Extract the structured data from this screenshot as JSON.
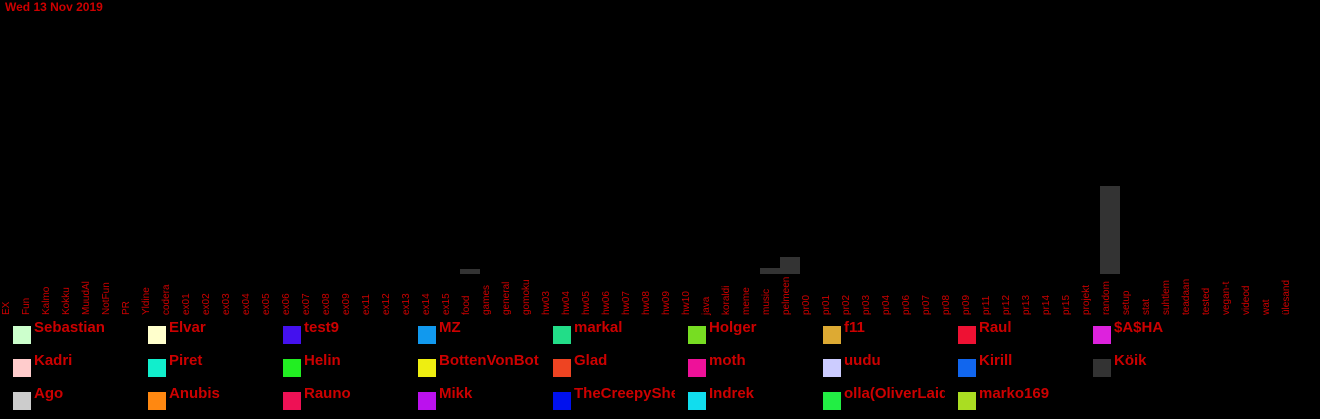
{
  "header": {
    "date": "Wed 13 Nov 2019"
  },
  "colors": {
    "text": "#cc0000",
    "bar": "#333333",
    "background": "#000000"
  },
  "chart_data": {
    "type": "bar",
    "title": "",
    "xlabel": "",
    "ylabel": "",
    "grid": false,
    "categories": [
      "EX",
      "Fun",
      "Kalmo",
      "Kokku",
      "MuudAl",
      "NotFun",
      "PR",
      "Yldine",
      "codera",
      "ex01",
      "ex02",
      "ex03",
      "ex04",
      "ex05",
      "ex06",
      "ex07",
      "ex08",
      "ex09",
      "ex11",
      "ex12",
      "ex13",
      "ex14",
      "ex15",
      "food",
      "games",
      "general",
      "gomoku",
      "hw03",
      "hw04",
      "hw05",
      "hw06",
      "hw07",
      "hw08",
      "hw09",
      "hw10",
      "java",
      "koraldi",
      "meme",
      "music",
      "pelmeen",
      "pr00",
      "pr01",
      "pr02",
      "pr03",
      "pr04",
      "pr06",
      "pr07",
      "pr08",
      "pr09",
      "pr11",
      "pr12",
      "pr13",
      "pr14",
      "pr15",
      "projekt",
      "random",
      "setup",
      "stat",
      "suhtlem",
      "teadaan",
      "tested",
      "vegan-t",
      "videod",
      "wat",
      "ülesand"
    ],
    "values": [
      0,
      0,
      0,
      0,
      0,
      0,
      0,
      0,
      0,
      0,
      0,
      0,
      0,
      0,
      0,
      0,
      0,
      0,
      0,
      0,
      0,
      0,
      0,
      5,
      0,
      0,
      0,
      0,
      0,
      0,
      0,
      0,
      0,
      0,
      0,
      0,
      0,
      0,
      6,
      17,
      0,
      0,
      0,
      0,
      0,
      0,
      0,
      0,
      0,
      0,
      0,
      0,
      0,
      0,
      0,
      88,
      0,
      0,
      0,
      0,
      0,
      0,
      0,
      0,
      0
    ],
    "ylim": [
      0,
      100
    ],
    "legend_position": "bottom"
  },
  "legend": [
    {
      "name": "Sebastian",
      "color": "#ccffcc"
    },
    {
      "name": "Elvar",
      "color": "#ffffcc"
    },
    {
      "name": "test9",
      "color": "#4411ee"
    },
    {
      "name": "MZ",
      "color": "#1199ee"
    },
    {
      "name": "markal",
      "color": "#22dd88"
    },
    {
      "name": "Holger",
      "color": "#77dd22"
    },
    {
      "name": "f11",
      "color": "#ddaa33"
    },
    {
      "name": "Raul",
      "color": "#ee1133"
    },
    {
      "name": "$A$HA",
      "color": "#dd22dd"
    },
    {
      "name": "Kadri",
      "color": "#ffcccc"
    },
    {
      "name": "Piret",
      "color": "#11eecc"
    },
    {
      "name": "Helin",
      "color": "#22ee22"
    },
    {
      "name": "BottenVonBot",
      "color": "#eeee11"
    },
    {
      "name": "Glad",
      "color": "#ee4422"
    },
    {
      "name": "moth",
      "color": "#ee1199"
    },
    {
      "name": "uudu",
      "color": "#ccccff"
    },
    {
      "name": "Kirill",
      "color": "#1166ee"
    },
    {
      "name": "Köik",
      "color": "#333333"
    },
    {
      "name": "Ago",
      "color": "#cccccc"
    },
    {
      "name": "Anubis",
      "color": "#ff8811"
    },
    {
      "name": "Rauno",
      "color": "#ee1155"
    },
    {
      "name": "Mikk",
      "color": "#bb11ee"
    },
    {
      "name": "TheCreepySheep",
      "color": "#0011ee"
    },
    {
      "name": "Indrek",
      "color": "#11ddee"
    },
    {
      "name": "olla(OliverLaidma)",
      "color": "#22ee44"
    },
    {
      "name": "marko169",
      "color": "#aadd22"
    }
  ]
}
